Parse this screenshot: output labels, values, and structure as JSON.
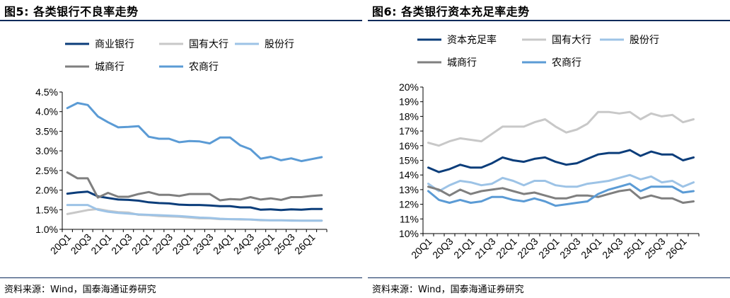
{
  "colors": {
    "navy": "#0b3d7a",
    "light_gray": "#c8c8c8",
    "light_blue": "#9dc3e6",
    "dark_gray": "#7f7f7f",
    "mid_blue": "#5b9bd5",
    "rule": "#0b2a5b"
  },
  "x_tick_labels": [
    "20Q1",
    "20Q3",
    "21Q1",
    "21Q3",
    "22Q1",
    "22Q3",
    "23Q1",
    "23Q3",
    "24Q1",
    "24Q3",
    "25Q1",
    "25Q3",
    "26Q1"
  ],
  "panels": [
    {
      "title": "图5:  各类银行不良率走势",
      "source": "资料来源：Wind，国泰海通证券研究"
    },
    {
      "title": "图6:  各类银行资本充足率走势",
      "source": "资料来源：Wind，国泰海通证券研究"
    }
  ],
  "chart_data": [
    {
      "type": "line",
      "title": "各类银行不良率走势",
      "x": [
        "20Q1",
        "20Q2",
        "20Q3",
        "20Q4",
        "21Q1",
        "21Q2",
        "21Q3",
        "21Q4",
        "22Q1",
        "22Q2",
        "22Q3",
        "22Q4",
        "23Q1",
        "23Q2",
        "23Q3",
        "23Q4",
        "24Q1",
        "24Q2",
        "24Q3",
        "24Q4",
        "25Q1",
        "25Q2",
        "25Q3",
        "25Q4",
        "26Q1",
        "26Q2"
      ],
      "ylim": [
        1.0,
        4.5
      ],
      "yticks": [
        "1.0%",
        "1.5%",
        "2.0%",
        "2.5%",
        "3.0%",
        "3.5%",
        "4.0%",
        "4.5%"
      ],
      "legend_placement": "top",
      "series": [
        {
          "name": "商业银行",
          "color": "#0b3d7a",
          "values": [
            1.91,
            1.94,
            1.96,
            1.84,
            1.8,
            1.76,
            1.75,
            1.73,
            1.69,
            1.67,
            1.66,
            1.63,
            1.62,
            1.62,
            1.61,
            1.59,
            1.59,
            1.56,
            1.56,
            1.5,
            1.51,
            1.49,
            1.51,
            1.5,
            1.52,
            1.52
          ]
        },
        {
          "name": "国有大行",
          "color": "#c8c8c8",
          "values": [
            1.39,
            1.44,
            1.49,
            1.52,
            1.47,
            1.44,
            1.43,
            1.37,
            1.36,
            1.34,
            1.33,
            1.32,
            1.3,
            1.28,
            1.28,
            1.26,
            1.26,
            1.25,
            1.25,
            1.23,
            1.23,
            1.23,
            1.23,
            1.22,
            1.22,
            1.22
          ]
        },
        {
          "name": "股份行",
          "color": "#9dc3e6",
          "values": [
            1.62,
            1.62,
            1.62,
            1.5,
            1.45,
            1.42,
            1.4,
            1.38,
            1.37,
            1.36,
            1.35,
            1.34,
            1.32,
            1.3,
            1.29,
            1.27,
            1.26,
            1.26,
            1.25,
            1.24,
            1.23,
            1.23,
            1.22,
            1.22,
            1.22,
            1.22
          ]
        },
        {
          "name": "城商行",
          "color": "#7f7f7f",
          "values": [
            2.45,
            2.3,
            2.3,
            1.81,
            1.93,
            1.83,
            1.83,
            1.9,
            1.95,
            1.88,
            1.88,
            1.85,
            1.9,
            1.9,
            1.9,
            1.74,
            1.77,
            1.76,
            1.82,
            1.76,
            1.79,
            1.75,
            1.82,
            1.82,
            1.85,
            1.87
          ]
        },
        {
          "name": "农商行",
          "color": "#5b9bd5",
          "values": [
            4.09,
            4.22,
            4.17,
            3.88,
            3.73,
            3.6,
            3.61,
            3.63,
            3.36,
            3.31,
            3.31,
            3.22,
            3.25,
            3.24,
            3.19,
            3.34,
            3.34,
            3.14,
            3.04,
            2.8,
            2.85,
            2.76,
            2.81,
            2.74,
            2.79,
            2.84
          ]
        }
      ]
    },
    {
      "type": "line",
      "title": "各类银行资本充足率走势",
      "x": [
        "20Q1",
        "20Q2",
        "20Q3",
        "20Q4",
        "21Q1",
        "21Q2",
        "21Q3",
        "21Q4",
        "22Q1",
        "22Q2",
        "22Q3",
        "22Q4",
        "23Q1",
        "23Q2",
        "23Q3",
        "23Q4",
        "24Q1",
        "24Q2",
        "24Q3",
        "24Q4",
        "25Q1",
        "25Q2",
        "25Q3",
        "25Q4",
        "26Q1",
        "26Q2"
      ],
      "ylim": [
        10,
        20
      ],
      "yticks": [
        "10%",
        "11%",
        "12%",
        "13%",
        "14%",
        "15%",
        "16%",
        "17%",
        "18%",
        "19%",
        "20%"
      ],
      "legend_placement": "top",
      "series": [
        {
          "name": "资本充足率",
          "color": "#0b3d7a",
          "values": [
            14.5,
            14.2,
            14.4,
            14.7,
            14.5,
            14.5,
            14.8,
            15.2,
            15.0,
            14.9,
            15.1,
            15.2,
            14.9,
            14.7,
            14.8,
            15.1,
            15.4,
            15.5,
            15.5,
            15.7,
            15.3,
            15.6,
            15.4,
            15.4,
            15.0,
            15.2
          ]
        },
        {
          "name": "国有大行",
          "color": "#c8c8c8",
          "values": [
            16.2,
            16.0,
            16.3,
            16.5,
            16.4,
            16.3,
            16.8,
            17.3,
            17.3,
            17.3,
            17.6,
            17.8,
            17.3,
            16.9,
            17.1,
            17.5,
            18.3,
            18.3,
            18.2,
            18.3,
            17.8,
            18.2,
            18.0,
            18.1,
            17.6,
            17.8
          ]
        },
        {
          "name": "股份行",
          "color": "#9dc3e6",
          "values": [
            13.4,
            12.9,
            13.3,
            13.6,
            13.5,
            13.3,
            13.4,
            13.8,
            13.6,
            13.3,
            13.6,
            13.6,
            13.3,
            13.2,
            13.2,
            13.4,
            13.5,
            13.6,
            13.8,
            14.0,
            13.7,
            13.9,
            13.5,
            13.6,
            13.2,
            13.5
          ]
        },
        {
          "name": "城商行",
          "color": "#7f7f7f",
          "values": [
            13.2,
            13.0,
            12.6,
            13.0,
            12.7,
            12.9,
            13.0,
            13.1,
            12.9,
            12.7,
            12.8,
            12.6,
            12.4,
            12.4,
            12.6,
            12.6,
            12.5,
            12.7,
            12.9,
            13.0,
            12.4,
            12.6,
            12.4,
            12.4,
            12.1,
            12.2
          ]
        },
        {
          "name": "农商行",
          "color": "#5b9bd5",
          "values": [
            12.9,
            12.3,
            12.1,
            12.3,
            12.1,
            12.2,
            12.5,
            12.5,
            12.3,
            12.2,
            12.4,
            12.2,
            11.9,
            12.0,
            12.1,
            12.2,
            12.7,
            13.0,
            13.2,
            13.4,
            12.9,
            13.2,
            13.2,
            13.2,
            12.8,
            12.9
          ]
        }
      ]
    }
  ]
}
